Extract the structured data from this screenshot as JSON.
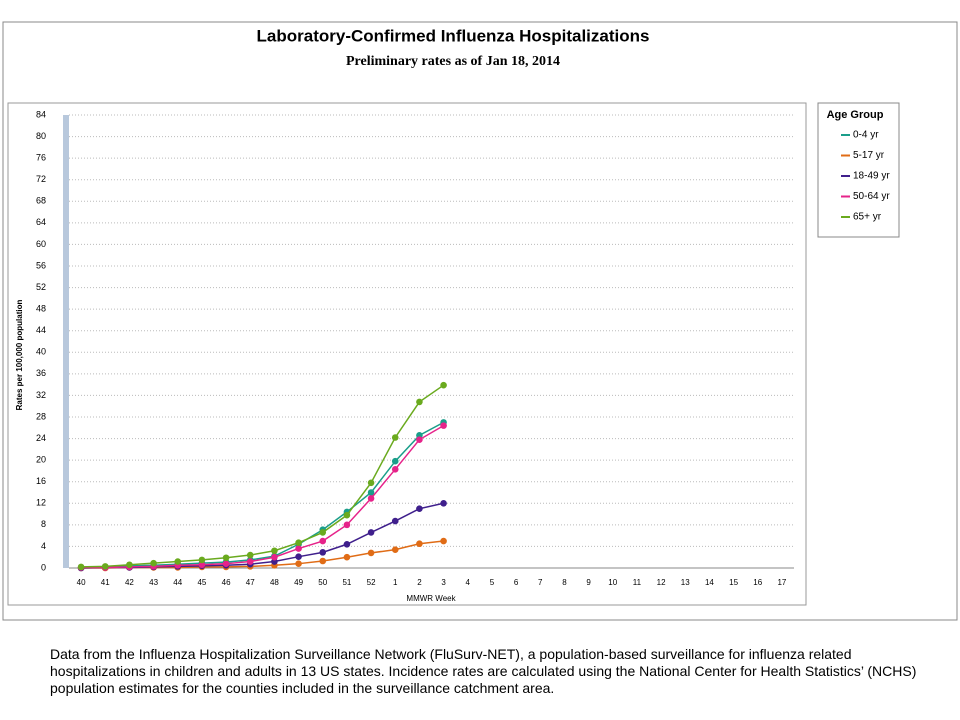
{
  "chart_data": {
    "type": "line",
    "title": "Laboratory-Confirmed Influenza Hospitalizations",
    "subtitle": "Preliminary rates as of Jan 18, 2014",
    "xlabel": "MMWR Week",
    "ylabel": "Rates per 100,000 population",
    "legend_title": "Age Group",
    "legend": "right",
    "grid": true,
    "categories": [
      "40",
      "41",
      "42",
      "43",
      "44",
      "45",
      "46",
      "47",
      "48",
      "49",
      "50",
      "51",
      "52",
      "1",
      "2",
      "3",
      "4",
      "5",
      "6",
      "7",
      "8",
      "9",
      "10",
      "11",
      "12",
      "13",
      "14",
      "15",
      "16",
      "17"
    ],
    "series": [
      {
        "name": "0-4 yr",
        "color": "#1a9e8a",
        "values": [
          0.1,
          0.2,
          0.4,
          0.5,
          0.7,
          0.9,
          1.1,
          1.5,
          2.2,
          4.4,
          7.1,
          10.4,
          14.0,
          19.8,
          24.6,
          27.0,
          null,
          null,
          null,
          null,
          null,
          null,
          null,
          null,
          null,
          null,
          null,
          null,
          null,
          null
        ]
      },
      {
        "name": "5-17 yr",
        "color": "#e06c16",
        "values": [
          0,
          0,
          0.1,
          0.1,
          0.1,
          0.2,
          0.2,
          0.3,
          0.5,
          0.8,
          1.3,
          2.0,
          2.8,
          3.4,
          4.5,
          5.0,
          null,
          null,
          null,
          null,
          null,
          null,
          null,
          null,
          null,
          null,
          null,
          null,
          null,
          null
        ]
      },
      {
        "name": "18-49 yr",
        "color": "#3f1f8c",
        "values": [
          0,
          0.1,
          0.1,
          0.2,
          0.3,
          0.4,
          0.5,
          0.7,
          1.2,
          2.1,
          2.9,
          4.4,
          6.6,
          8.7,
          11.0,
          12.0,
          null,
          null,
          null,
          null,
          null,
          null,
          null,
          null,
          null,
          null,
          null,
          null,
          null,
          null
        ]
      },
      {
        "name": "50-64 yr",
        "color": "#e6238a",
        "values": [
          0.1,
          0.1,
          0.2,
          0.3,
          0.5,
          0.6,
          0.8,
          1.2,
          2.0,
          3.6,
          5.0,
          8.0,
          12.9,
          18.3,
          23.8,
          26.4,
          null,
          null,
          null,
          null,
          null,
          null,
          null,
          null,
          null,
          null,
          null,
          null,
          null,
          null
        ]
      },
      {
        "name": "65+ yr",
        "color": "#6aaa1e",
        "values": [
          0.2,
          0.3,
          0.6,
          0.9,
          1.2,
          1.5,
          1.9,
          2.4,
          3.2,
          4.7,
          6.6,
          9.8,
          15.8,
          24.2,
          30.8,
          33.9,
          null,
          null,
          null,
          null,
          null,
          null,
          null,
          null,
          null,
          null,
          null,
          null,
          null,
          null
        ]
      }
    ],
    "ylim": [
      0,
      84
    ],
    "yticks": [
      0,
      4,
      8,
      12,
      16,
      20,
      24,
      28,
      32,
      36,
      40,
      44,
      48,
      52,
      56,
      60,
      64,
      68,
      72,
      76,
      80,
      84
    ]
  },
  "footnote": "Data from the Influenza Hospitalization Surveillance Network (FluSurv-NET),  a population-based surveillance for influenza related hospitalizations in children and adults in 13 US states. Incidence rates are calculated using the National Center for Health Statistics’ (NCHS) population estimates for the counties included in the surveillance catchment area."
}
